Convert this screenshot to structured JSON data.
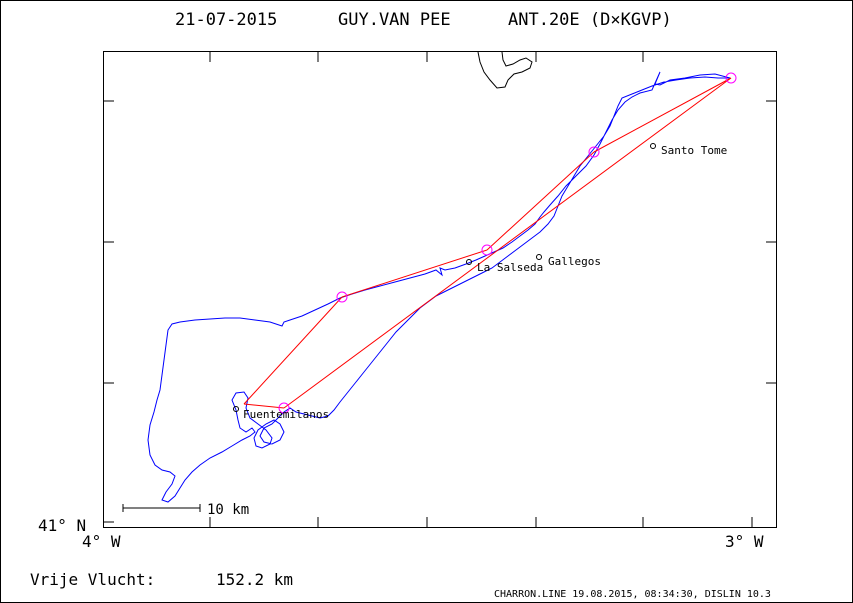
{
  "header": {
    "date": "21-07-2015",
    "pilot": "GUY.VAN PEE",
    "glider": "ANT.20E (D×KGVP)"
  },
  "axes": {
    "lat_label": "41° N",
    "lon_left_label": "4° W",
    "lon_right_label": "3° W"
  },
  "scale_bar": {
    "label": "10 km"
  },
  "places": [
    {
      "name": "Santo Tome"
    },
    {
      "name": "Gallegos"
    },
    {
      "name": "La Salseda"
    },
    {
      "name": "Fuentemilanos"
    }
  ],
  "footer": {
    "distance_label": "Vrije Vlucht:",
    "distance_value": "152.2 km",
    "credits": "CHARRON.LINE 19.08.2015, 08:34:30, DISLIN 10.3"
  },
  "colors": {
    "track": "#0000ff",
    "task_lines": "#ff0000",
    "turnpoints": "#ff00ff",
    "frame": "#000000"
  }
}
